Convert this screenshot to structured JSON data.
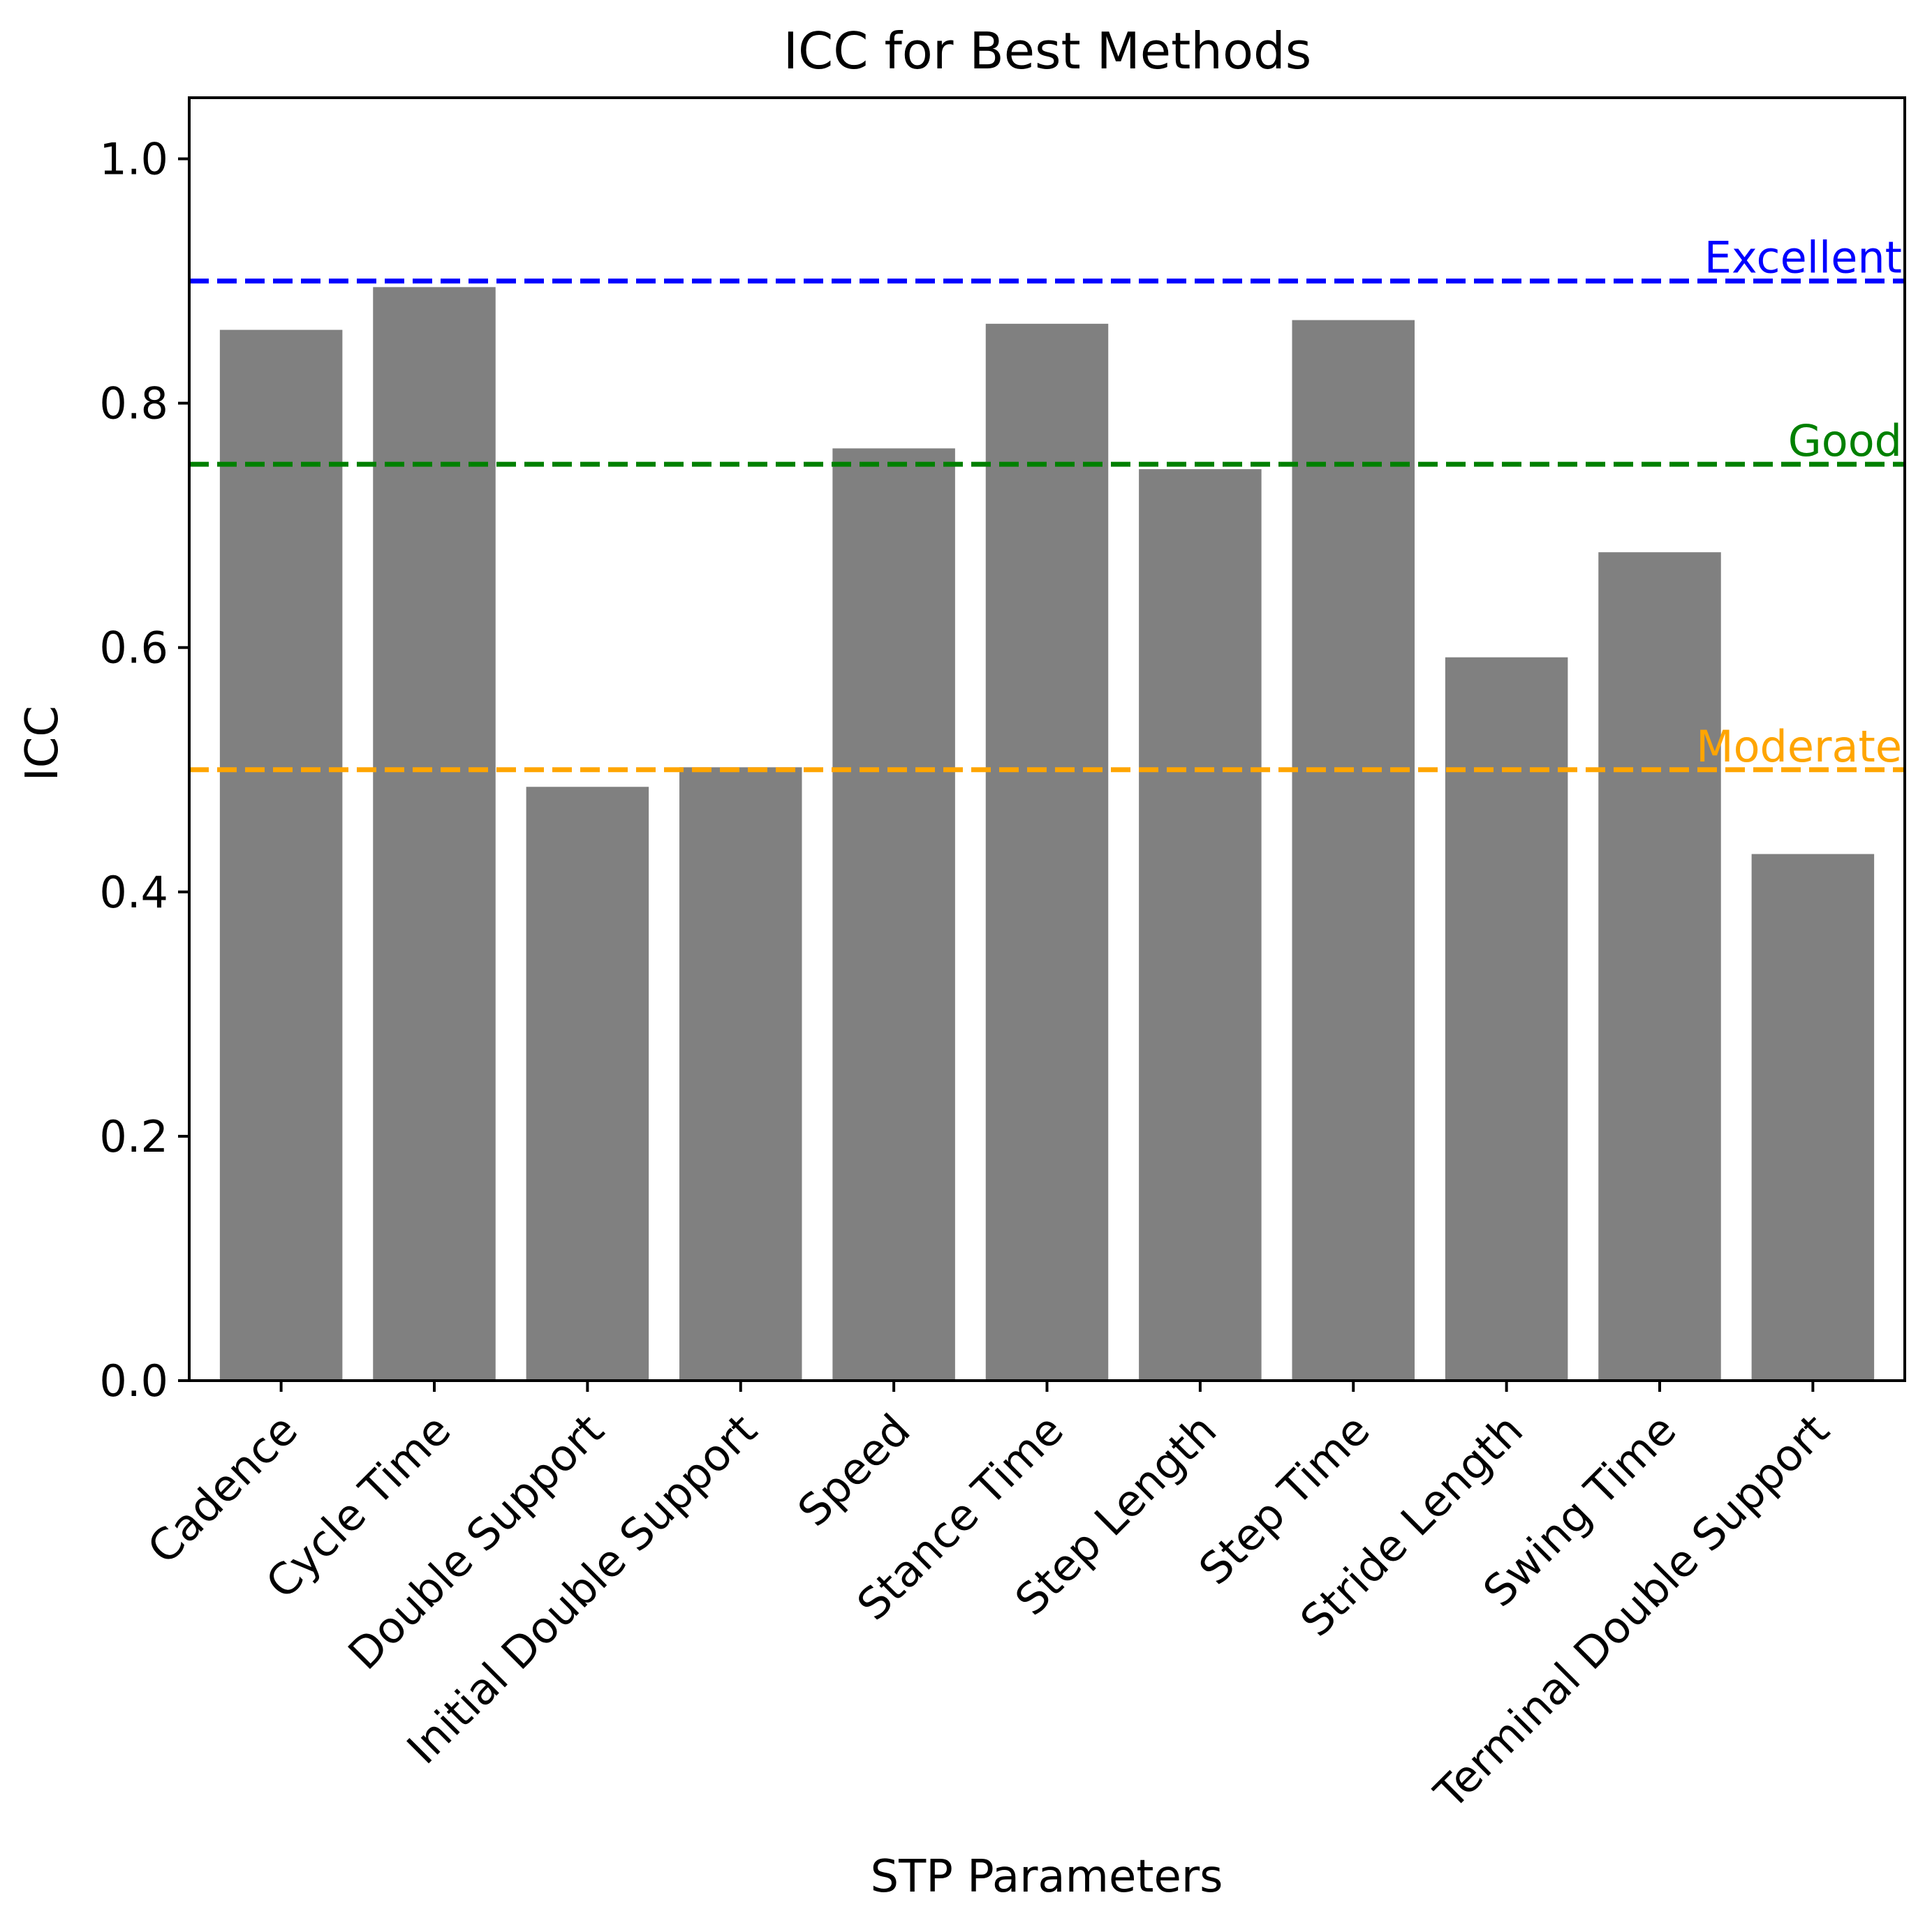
{
  "chart_data": {
    "type": "bar",
    "title": "ICC for Best Methods",
    "xlabel": "STP Parameters",
    "ylabel": "ICC",
    "ylim": [
      0,
      1.05
    ],
    "yticks": [
      0.0,
      0.2,
      0.4,
      0.6,
      0.8,
      1.0
    ],
    "ytick_labels": [
      "0.0",
      "0.2",
      "0.4",
      "0.6",
      "0.8",
      "1.0"
    ],
    "categories": [
      "Cadence",
      "Cycle Time",
      "Double Support",
      "Initial Double Support",
      "Speed",
      "Stance Time",
      "Step Length",
      "Step Time",
      "Stride Length",
      "Swing Time",
      "Terminal Double Support"
    ],
    "values": [
      0.86,
      0.895,
      0.486,
      0.502,
      0.763,
      0.865,
      0.746,
      0.868,
      0.592,
      0.678,
      0.431
    ],
    "bar_color": "#808080",
    "reference_lines": [
      {
        "name": "Excellent",
        "value": 0.9,
        "color": "#0000ff"
      },
      {
        "name": "Good",
        "value": 0.75,
        "color": "#008000"
      },
      {
        "name": "Moderate",
        "value": 0.5,
        "color": "#ffa500"
      }
    ],
    "grid": false,
    "legend": "none"
  }
}
